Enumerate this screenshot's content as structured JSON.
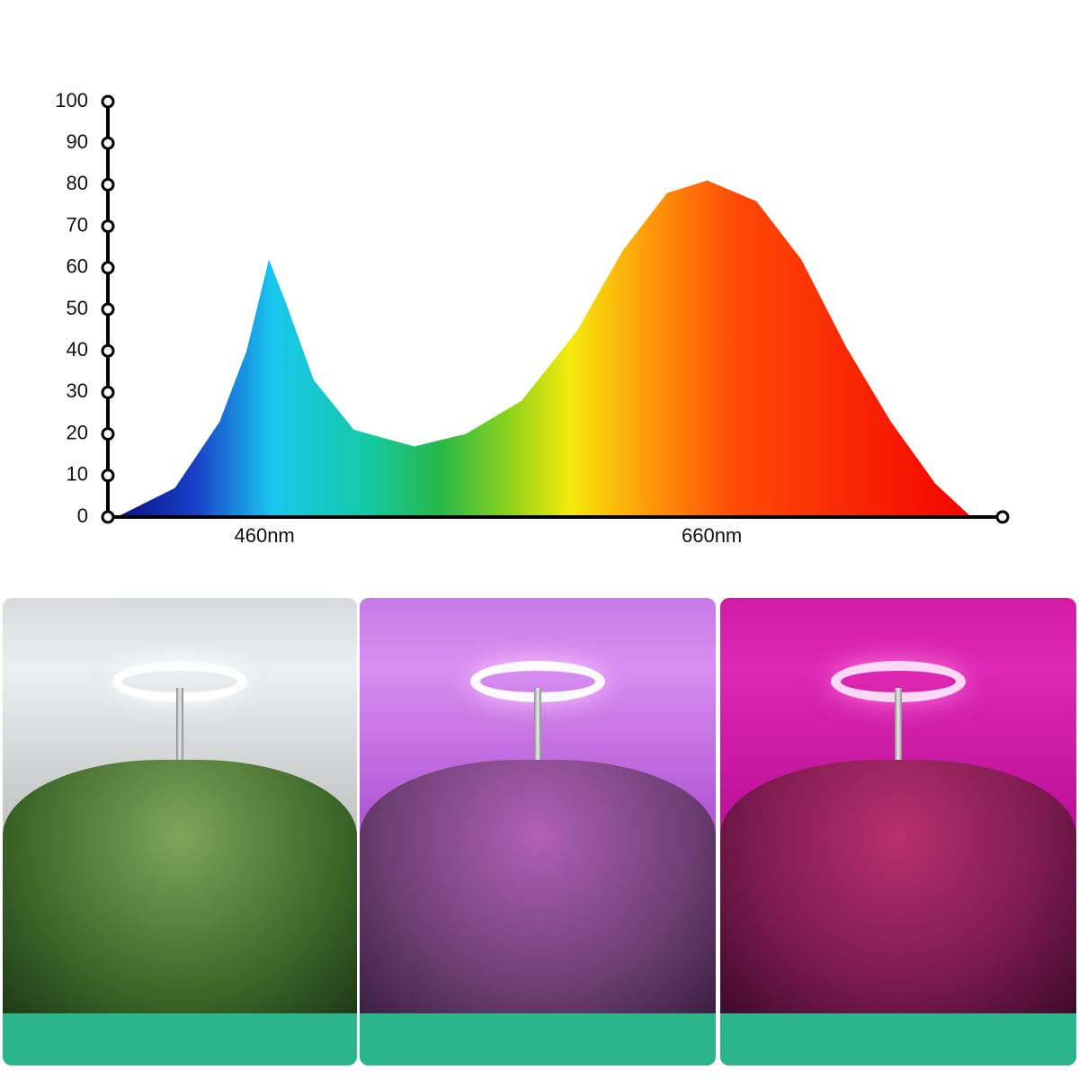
{
  "chart_data": {
    "type": "area",
    "x": [
      394,
      420,
      440,
      452,
      462,
      470,
      482,
      500,
      527,
      550,
      575,
      600,
      620,
      640,
      658,
      680,
      700,
      720,
      740,
      760,
      776
    ],
    "values": [
      0,
      7,
      23,
      40,
      62,
      51,
      33,
      21,
      17,
      20,
      28,
      45,
      64,
      78,
      81,
      76,
      62,
      41,
      23,
      8,
      0
    ],
    "xlim": [
      390,
      790
    ],
    "xticks": [
      {
        "value": 460,
        "label": "460nm"
      },
      {
        "value": 660,
        "label": "660nm"
      }
    ],
    "ylim": [
      0,
      100
    ],
    "yticks": [
      0,
      10,
      20,
      30,
      40,
      50,
      60,
      70,
      80,
      90,
      100
    ],
    "grid": false
  }
}
